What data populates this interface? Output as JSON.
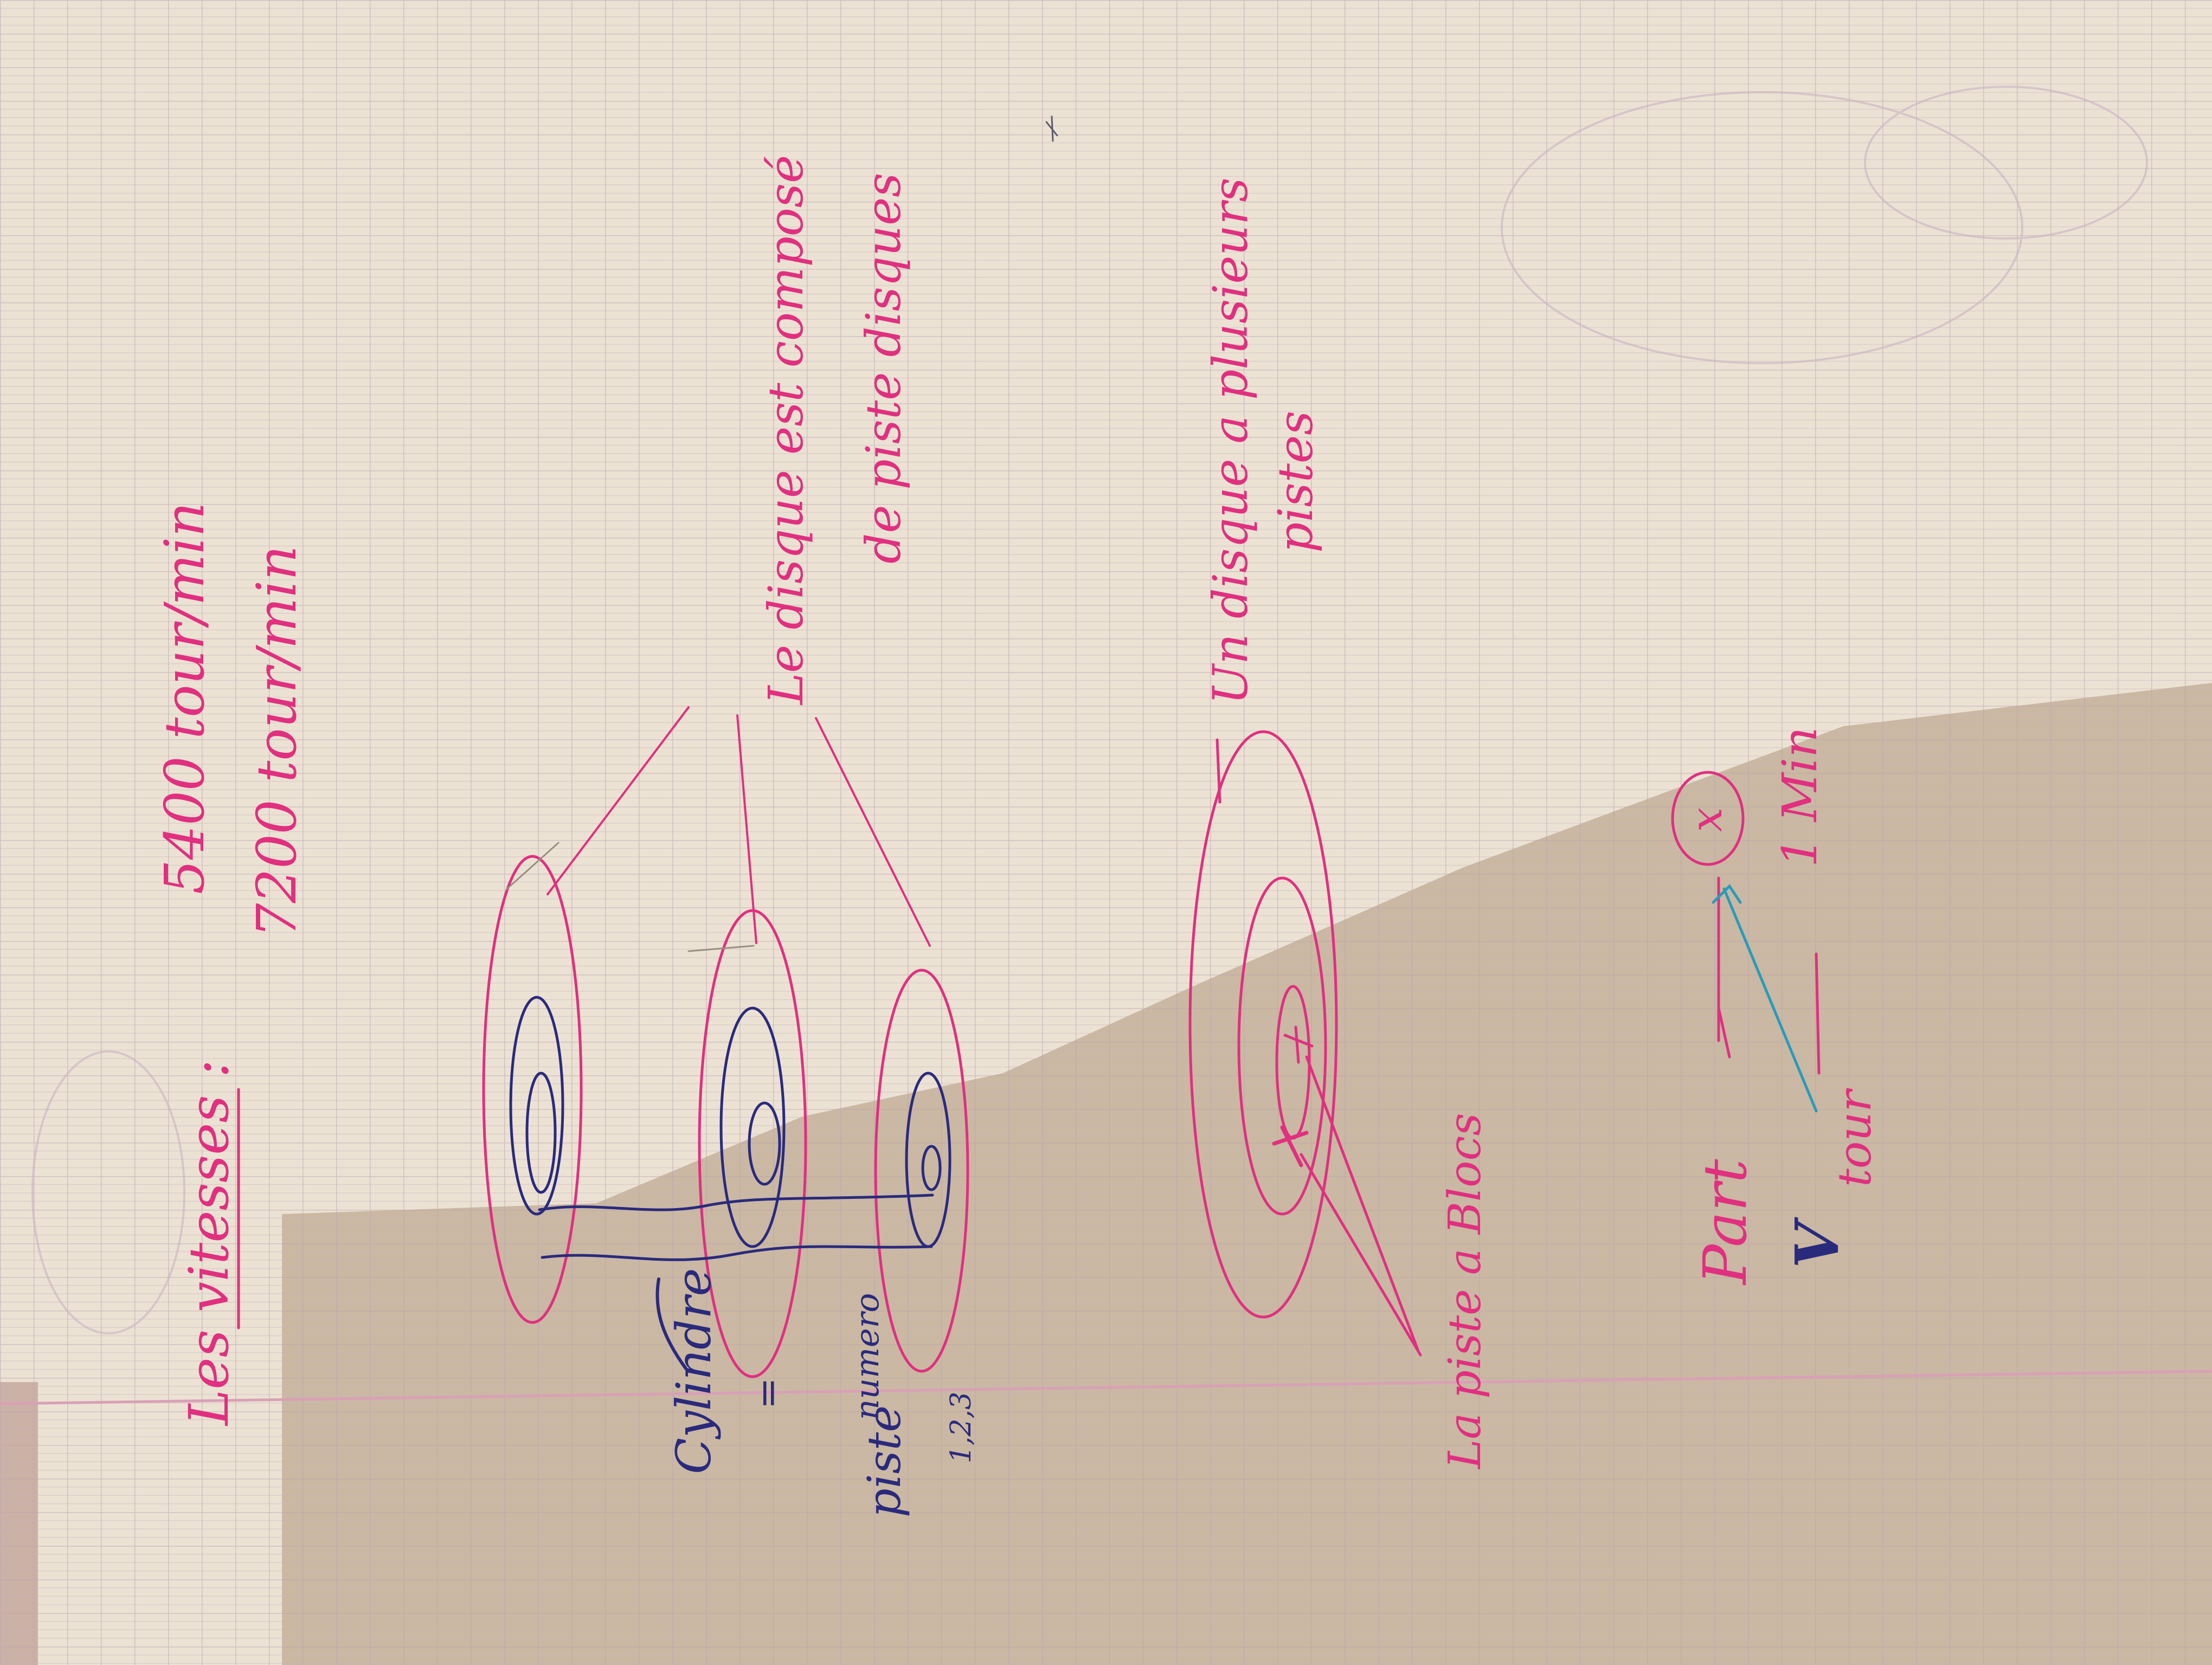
{
  "photo": {
    "subject": "handwritten-notebook-page",
    "orientation": "rotated-90-counterclockwise",
    "paper_color": "#ece2d4",
    "shadow_color": "#c4b09a",
    "grid_color": "#b9a4ad",
    "margin_line_color": "#d9a0b6",
    "ink": {
      "pink": "#e0307f",
      "navy": "#2a2a7c",
      "cyan": "#2a9bb8"
    }
  },
  "notes": {
    "heading": "Les vitesses :",
    "speed_1": "5400 tour/min",
    "speed_2": "7200 tour/min",
    "disk_stack_line_1": "Le disque est composé",
    "disk_stack_line_2": "de piste disques",
    "disk_has_line_1": "Un disque a plusieurs",
    "disk_has_line_2": "pistes",
    "cylinder_line_1": "Cylindre",
    "cylinder_line_2": "=",
    "cylinder_line_3": "piste",
    "cylinder_line_4": "numero",
    "cylinder_line_5": "1,2,3",
    "track_blocks": "La piste a Blocs",
    "rule_x": "x",
    "rule_one_min": "1 Min",
    "rule_part": "Part",
    "rule_v": "V",
    "rule_tour": "tour"
  }
}
